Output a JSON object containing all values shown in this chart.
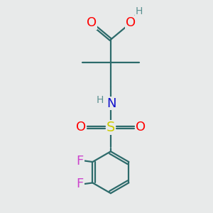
{
  "bg_color": "#e8eaea",
  "bond_color": "#2d6b6b",
  "atom_colors": {
    "O": "#ff0000",
    "N": "#1111cc",
    "S": "#cccc00",
    "F": "#cc44cc",
    "H": "#5a9090",
    "C": "#2d6b6b"
  },
  "line_width": 1.6,
  "figsize": [
    3.0,
    3.0
  ],
  "dpi": 100
}
